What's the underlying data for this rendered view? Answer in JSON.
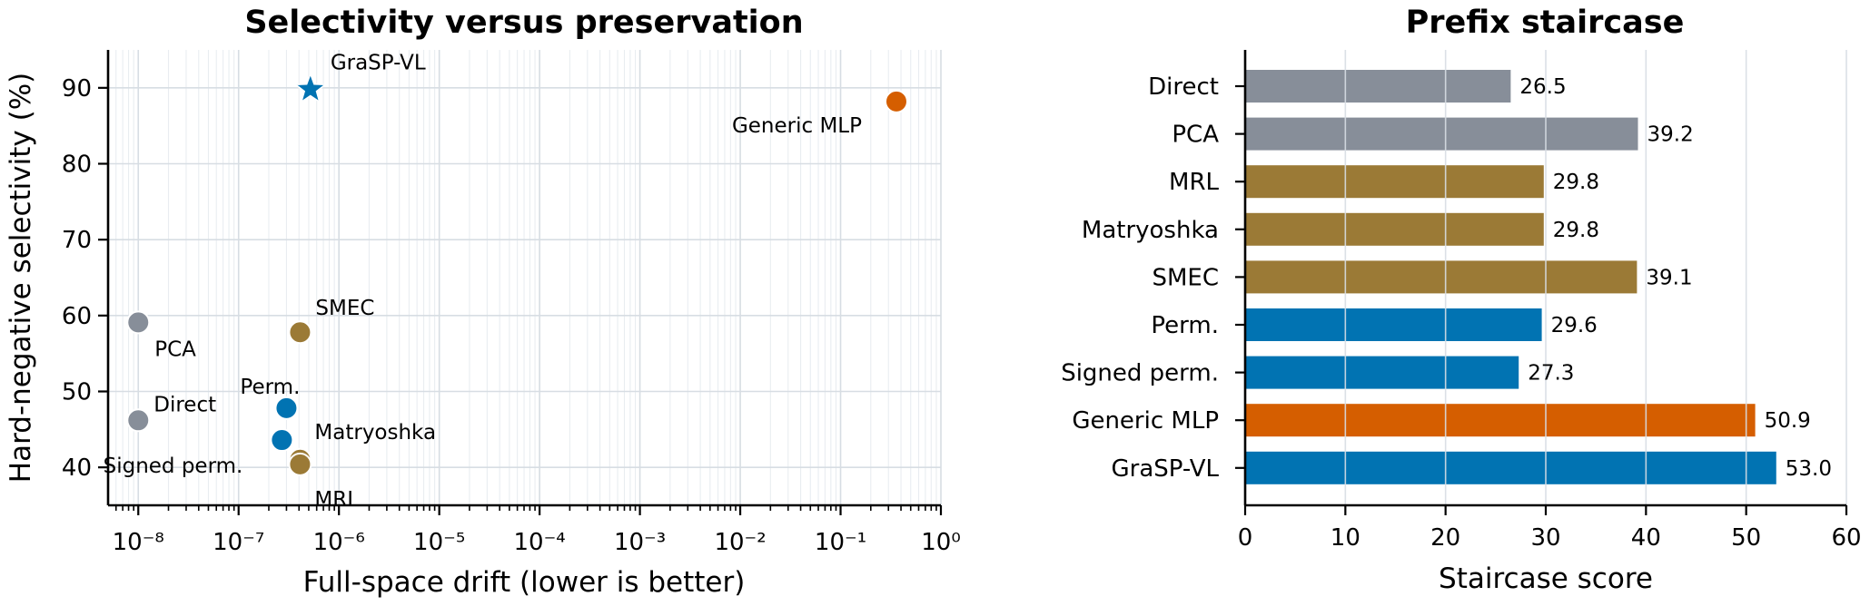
{
  "chart_data": [
    {
      "type": "scatter",
      "title": "Selectivity versus preservation",
      "xlabel": "Full-space drift (lower is better)",
      "ylabel": "Hard-negative selectivity (%)",
      "xscale": "log",
      "xlim": [
        5e-09,
        1.0
      ],
      "ylim": [
        35,
        95
      ],
      "xtick_labels": [
        "10⁻⁸",
        "10⁻⁷",
        "10⁻⁶",
        "10⁻⁵",
        "10⁻⁴",
        "10⁻³",
        "10⁻²",
        "10⁻¹",
        "10⁰"
      ],
      "ytick_labels": [
        "40",
        "50",
        "60",
        "70",
        "80",
        "90"
      ],
      "grid": true,
      "colors": {
        "baseline": "#878e99",
        "nested": "#9b7a36",
        "grasp": "#0173b2",
        "generic": "#d55e00"
      },
      "points": [
        {
          "label": "GraSP-VL",
          "x": 5.2e-07,
          "y": 89.8,
          "group": "grasp",
          "marker": "star"
        },
        {
          "label": "Generic MLP",
          "x": 0.36,
          "y": 88.2,
          "group": "generic",
          "marker": "circle"
        },
        {
          "label": "PCA",
          "x": 1e-08,
          "y": 59.1,
          "group": "baseline",
          "marker": "circle"
        },
        {
          "label": "SMEC",
          "x": 4.1e-07,
          "y": 57.8,
          "group": "nested",
          "marker": "circle"
        },
        {
          "label": "Perm.",
          "x": 3e-07,
          "y": 47.8,
          "group": "grasp",
          "marker": "circle"
        },
        {
          "label": "Direct",
          "x": 1e-08,
          "y": 46.2,
          "group": "baseline",
          "marker": "circle"
        },
        {
          "label": "Signed perm.",
          "x": 2.7e-07,
          "y": 43.6,
          "group": "grasp",
          "marker": "circle"
        },
        {
          "label": "Matryoshka",
          "x": 4.1e-07,
          "y": 41.0,
          "group": "nested",
          "marker": "circle"
        },
        {
          "label": "MRL",
          "x": 4.1e-07,
          "y": 40.4,
          "group": "nested",
          "marker": "circle"
        }
      ]
    },
    {
      "type": "bar",
      "orientation": "horizontal",
      "title": "Prefix staircase",
      "xlabel": "Staircase score",
      "xlim": [
        0,
        60
      ],
      "xtick_labels": [
        "0",
        "10",
        "20",
        "30",
        "40",
        "50",
        "60"
      ],
      "grid": true,
      "categories": [
        "Direct",
        "PCA",
        "MRL",
        "Matryoshka",
        "SMEC",
        "Perm.",
        "Signed perm.",
        "Generic MLP",
        "GraSP-VL"
      ],
      "values": [
        26.5,
        39.2,
        29.8,
        29.8,
        39.1,
        29.6,
        27.3,
        50.9,
        53.0
      ],
      "value_labels": [
        "26.5",
        "39.2",
        "29.8",
        "29.8",
        "39.1",
        "29.6",
        "27.3",
        "50.9",
        "53.0"
      ],
      "bar_colors": [
        "#878e99",
        "#878e99",
        "#9b7a36",
        "#9b7a36",
        "#9b7a36",
        "#0173b2",
        "#0173b2",
        "#d55e00",
        "#0173b2"
      ]
    }
  ]
}
